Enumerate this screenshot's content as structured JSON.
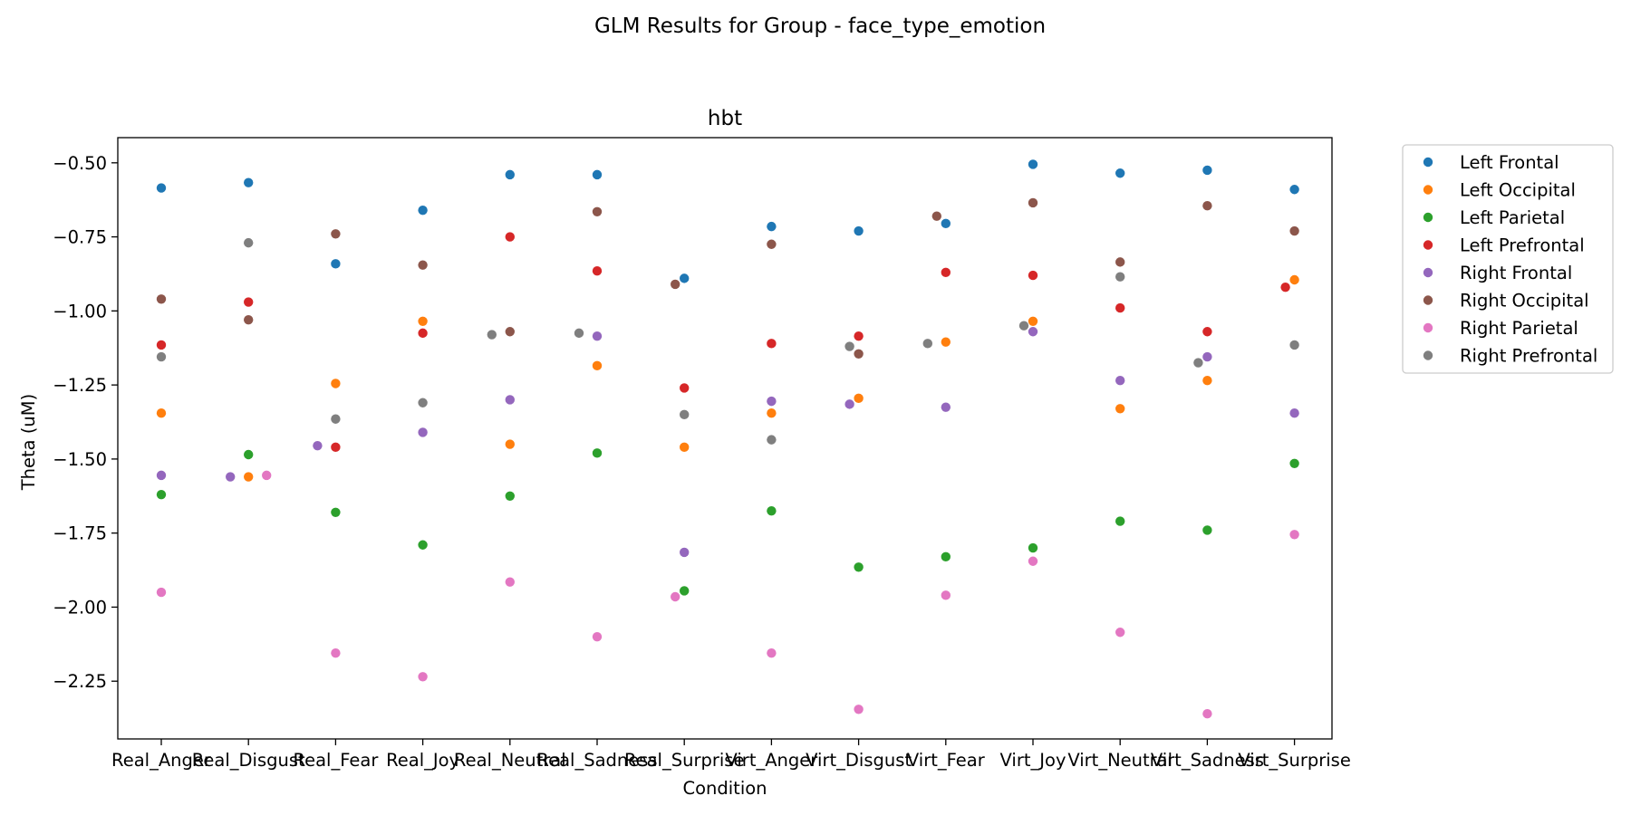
{
  "chart_data": {
    "type": "scatter",
    "suptitle": "GLM Results for Group - face_type_emotion",
    "title": "hbt",
    "xlabel": "Condition",
    "ylabel": "Theta (uM)",
    "categories": [
      "Real_Anger",
      "Real_Disgust",
      "Real_Fear",
      "Real_Joy",
      "Real_Neutral",
      "Real_Sadness",
      "Real_Surprise",
      "Virt_Anger",
      "Virt_Disgust",
      "Virt_Fear",
      "Virt_Joy",
      "Virt_Neutral",
      "Virt_Sadness",
      "Virt_Surprise"
    ],
    "ylim": [
      -2.445,
      -0.415
    ],
    "yticks": [
      -0.5,
      -0.75,
      -1.0,
      -1.25,
      -1.5,
      -1.75,
      -2.0,
      -2.25
    ],
    "ytick_labels": [
      "−0.50",
      "−0.75",
      "−1.00",
      "−1.25",
      "−1.50",
      "−1.75",
      "−2.00",
      "−2.25"
    ],
    "grid": false,
    "legend_position": "outside-right",
    "series": [
      {
        "name": "Left Frontal",
        "color": "#1f77b4",
        "values": [
          -0.585,
          -0.567,
          -0.841,
          -0.66,
          -0.54,
          -0.54,
          -0.89,
          -0.715,
          -0.73,
          -0.705,
          -0.505,
          -0.535,
          -0.525,
          -0.59
        ]
      },
      {
        "name": "Left Occipital",
        "color": "#ff7f0e",
        "values": [
          -1.345,
          -1.56,
          -1.245,
          -1.035,
          -1.45,
          -1.185,
          -1.46,
          -1.345,
          -1.295,
          -1.105,
          -1.035,
          -1.33,
          -1.235,
          -0.895
        ]
      },
      {
        "name": "Left Parietal",
        "color": "#2ca02c",
        "values": [
          -1.62,
          -1.485,
          -1.68,
          -1.79,
          -1.625,
          -1.48,
          -1.945,
          -1.675,
          -1.865,
          -1.83,
          -1.8,
          -1.71,
          -1.74,
          -1.515
        ]
      },
      {
        "name": "Left Prefrontal",
        "color": "#d62728",
        "values": [
          -1.115,
          -0.97,
          -1.46,
          -1.075,
          -0.75,
          -0.865,
          -1.26,
          -1.11,
          -1.085,
          -0.87,
          -0.88,
          -0.99,
          -1.07,
          -0.92
        ]
      },
      {
        "name": "Right Frontal",
        "color": "#9467bd",
        "values": [
          -1.555,
          -1.56,
          -1.455,
          -1.41,
          -1.3,
          -1.085,
          -1.815,
          -1.305,
          -1.315,
          -1.325,
          -1.07,
          -1.235,
          -1.155,
          -1.345
        ]
      },
      {
        "name": "Right Occipital",
        "color": "#8c564b",
        "values": [
          -0.96,
          -1.03,
          -0.74,
          -0.845,
          -1.07,
          -0.665,
          -0.91,
          -0.775,
          -1.145,
          -0.68,
          -0.635,
          -0.835,
          -0.645,
          -0.73
        ]
      },
      {
        "name": "Right Parietal",
        "color": "#e377c2",
        "values": [
          -1.95,
          -1.555,
          -2.155,
          -2.235,
          -1.915,
          -2.1,
          -1.965,
          -2.155,
          -2.345,
          -1.96,
          -1.845,
          -2.085,
          -2.36,
          -1.755
        ]
      },
      {
        "name": "Right Prefrontal",
        "color": "#7f7f7f",
        "values": [
          -1.155,
          -0.77,
          -1.365,
          -1.31,
          -1.08,
          -1.075,
          -1.35,
          -1.435,
          -1.12,
          -1.11,
          -1.05,
          -0.885,
          -1.175,
          -1.115
        ]
      }
    ]
  }
}
